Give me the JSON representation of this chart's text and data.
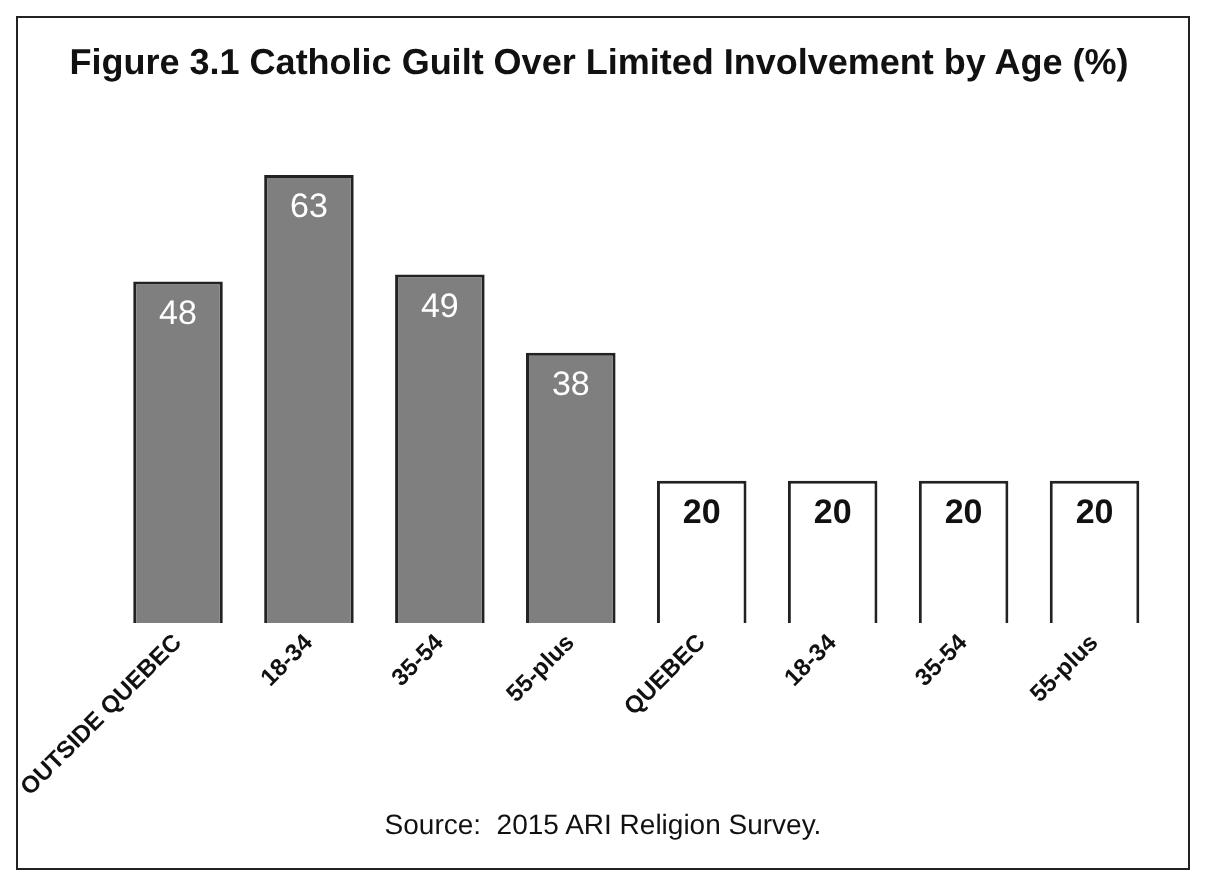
{
  "chart_data": {
    "type": "bar",
    "title": "Figure 3.1 Catholic Guilt Over Limited Involvement by Age (%)",
    "categories": [
      "OUTSIDE QUEBEC",
      "18-34",
      "35-54",
      "55-plus",
      "QUEBEC",
      "18-34",
      "35-54",
      "55-plus"
    ],
    "values": [
      48,
      63,
      49,
      38,
      20,
      20,
      20,
      20
    ],
    "colors": [
      "#7f7f7f",
      "#7f7f7f",
      "#7f7f7f",
      "#7f7f7f",
      "#ffffff",
      "#ffffff",
      "#ffffff",
      "#ffffff"
    ],
    "data_labels": true,
    "grid": false,
    "legend": false,
    "annotations": [
      "Source:  2015 ARI Religion Survey."
    ]
  }
}
